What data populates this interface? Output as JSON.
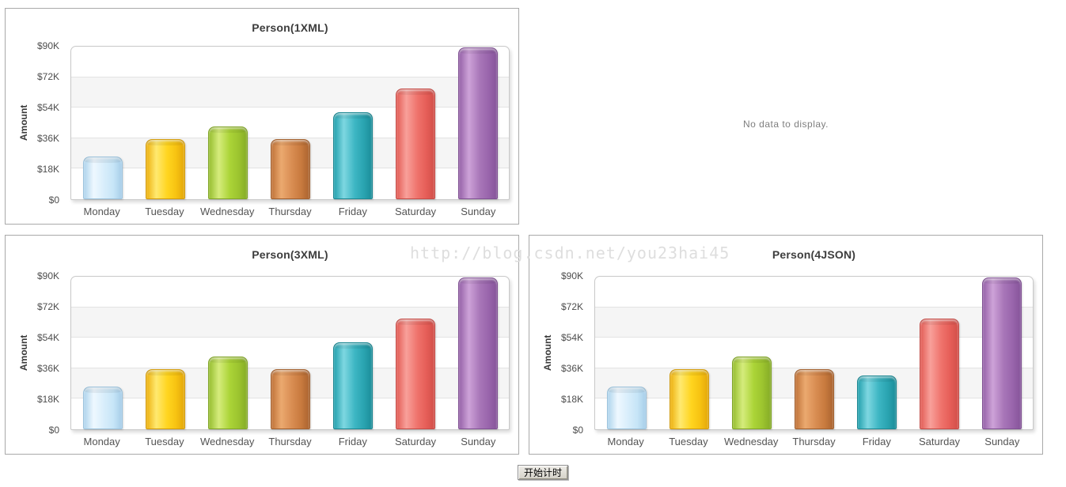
{
  "watermark": {
    "text": "http://blog.csdn.net/you23hai45"
  },
  "empty_panel": {
    "message": "No data to display."
  },
  "timer_button": {
    "label": "开始计时"
  },
  "axis": {
    "ylabel": "Amount",
    "yticks_desc": [
      "$90K",
      "$72K",
      "$54K",
      "$36K",
      "$18K",
      "$0"
    ]
  },
  "chart_data": [
    {
      "type": "bar",
      "title": "Person(1XML)",
      "categories": [
        "Monday",
        "Tuesday",
        "Wednesday",
        "Thursday",
        "Friday",
        "Saturday",
        "Sunday"
      ],
      "values": [
        25000,
        35500,
        43000,
        35300,
        51300,
        65500,
        89500
      ],
      "xlabel": "",
      "ylabel": "Amount",
      "ylim": [
        0,
        90000
      ],
      "ytick_labels": [
        "$0",
        "$18K",
        "$36K",
        "$54K",
        "$72K",
        "$90K"
      ],
      "grid": true,
      "legend": false,
      "bar_colors": [
        "#c6e5f7",
        "#ffd51f",
        "#abd437",
        "#d88c51",
        "#3db6c3",
        "#ef736c",
        "#a876b8"
      ]
    },
    {
      "type": "bar",
      "title": "Person(3XML)",
      "categories": [
        "Monday",
        "Tuesday",
        "Wednesday",
        "Thursday",
        "Friday",
        "Saturday",
        "Sunday"
      ],
      "values": [
        25000,
        35500,
        43000,
        35300,
        51300,
        65500,
        89500
      ],
      "xlabel": "",
      "ylabel": "Amount",
      "ylim": [
        0,
        90000
      ],
      "ytick_labels": [
        "$0",
        "$18K",
        "$36K",
        "$54K",
        "$72K",
        "$90K"
      ],
      "grid": true,
      "legend": false,
      "bar_colors": [
        "#c6e5f7",
        "#ffd51f",
        "#abd437",
        "#d88c51",
        "#3db6c3",
        "#ef736c",
        "#a876b8"
      ]
    },
    {
      "type": "bar",
      "title": "Person(4JSON)",
      "categories": [
        "Monday",
        "Tuesday",
        "Wednesday",
        "Thursday",
        "Friday",
        "Saturday",
        "Sunday"
      ],
      "values": [
        25000,
        35500,
        43000,
        35300,
        31800,
        65500,
        89500
      ],
      "xlabel": "",
      "ylabel": "Amount",
      "ylim": [
        0,
        90000
      ],
      "ytick_labels": [
        "$0",
        "$18K",
        "$36K",
        "$54K",
        "$72K",
        "$90K"
      ],
      "grid": true,
      "legend": false,
      "bar_colors": [
        "#c6e5f7",
        "#ffd51f",
        "#abd437",
        "#d88c51",
        "#3db6c3",
        "#ef736c",
        "#a876b8"
      ]
    }
  ],
  "render": {
    "bar_heights": [
      [
        "27.8%",
        "39.4%",
        "47.8%",
        "39.2%",
        "57.0%",
        "72.8%",
        "99.4%"
      ],
      [
        "27.8%",
        "39.4%",
        "47.8%",
        "39.2%",
        "57.0%",
        "72.8%",
        "99.4%"
      ],
      [
        "27.8%",
        "39.4%",
        "47.8%",
        "39.2%",
        "35.3%",
        "72.8%",
        "99.4%"
      ]
    ]
  }
}
